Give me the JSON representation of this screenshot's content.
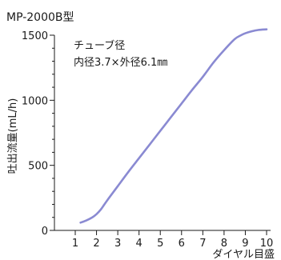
{
  "chart_data": {
    "type": "line",
    "title": "MP-2000B型",
    "xlabel": "ダイヤル目盛",
    "ylabel": "吐出流量(mL/h)",
    "xlim": [
      0,
      10
    ],
    "ylim": [
      0,
      1500
    ],
    "x_ticks": [
      1,
      2,
      3,
      4,
      5,
      6,
      7,
      8,
      9,
      10
    ],
    "y_ticks": [
      0,
      500,
      1000,
      1500
    ],
    "grid": false,
    "series_color": "#8a8ad2",
    "annotations": [
      "チューブ径",
      "内径3.7×外径6.1㎜"
    ],
    "series": [
      {
        "x": [
          1.25,
          1.5,
          1.8,
          2.0,
          2.2,
          2.5,
          3.0,
          3.5,
          4.0,
          4.5,
          5.0,
          5.5,
          6.0,
          6.5,
          7.0,
          7.5,
          8.0,
          8.5,
          8.8,
          9.0,
          9.3,
          9.6,
          10.0
        ],
        "y": [
          60,
          75,
          100,
          125,
          160,
          230,
          340,
          450,
          555,
          660,
          765,
          870,
          975,
          1080,
          1180,
          1290,
          1385,
          1470,
          1500,
          1515,
          1530,
          1540,
          1545
        ]
      }
    ]
  }
}
